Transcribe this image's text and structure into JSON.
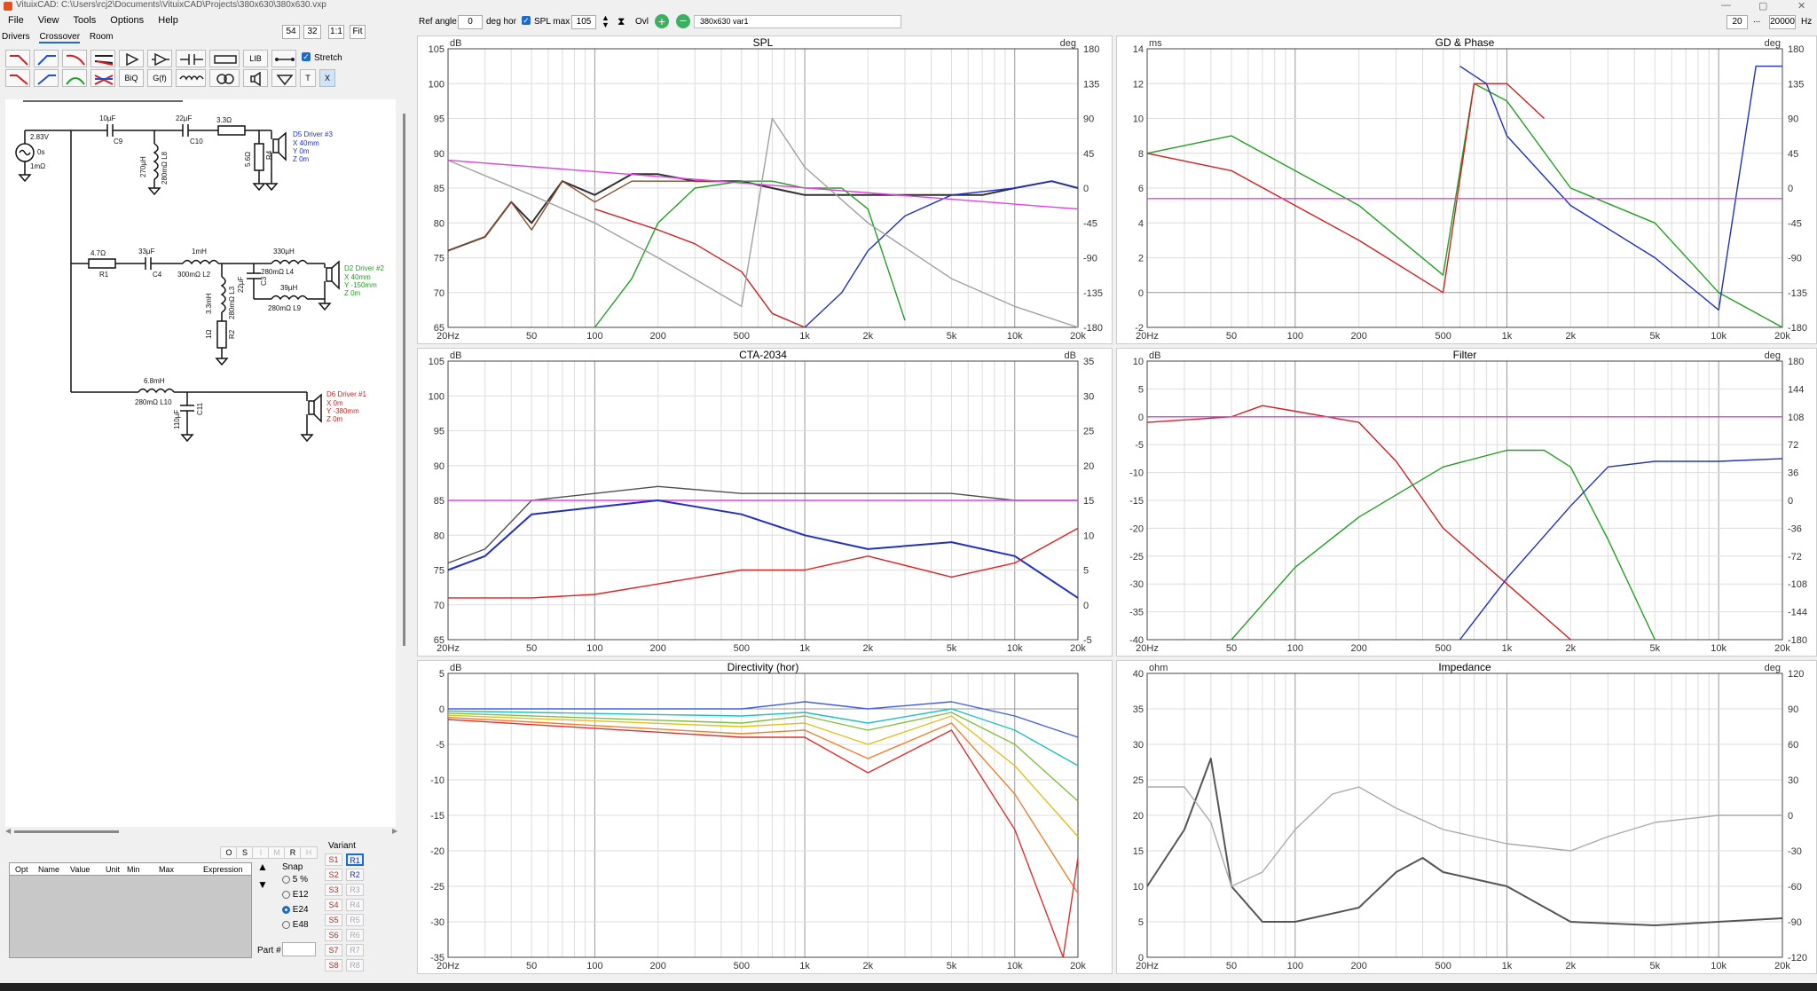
{
  "titlebar": {
    "title": "VituixCAD: C:\\Users\\rcj2\\Documents\\VituixCAD\\Projects\\380x630\\380x630.vxp"
  },
  "menu": [
    "File",
    "View",
    "Tools",
    "Options",
    "Help"
  ],
  "toolbar": {
    "zoom_a": "54",
    "zoom_b": "32",
    "ratio": "1:1",
    "fit": "Fit",
    "ref_angle_label": "Ref angle",
    "ref_angle_value": "0",
    "deg_hor": "deg hor",
    "spl_max_label": "SPL max",
    "spl_max_value": "105",
    "ovl_label": "Ovl",
    "project_name": "380x630 var1",
    "freq_min": "20",
    "freq_max": "20000",
    "freq_unit": "Hz",
    "ellipsis": "..."
  },
  "tabs": [
    "Drivers",
    "Crossover",
    "Room"
  ],
  "component_buttons": [
    "LIB",
    "BiQ",
    "G(f)",
    "T",
    "X"
  ],
  "stretch_label": "Stretch",
  "schematic": {
    "source": {
      "voltage": "2.83V",
      "delay": "0s",
      "r": "1mΩ"
    },
    "labels": {
      "c9": "10µF",
      "c9n": "C9",
      "c10": "22µF",
      "c10n": "C10",
      "r3": "3.3Ω",
      "l8": "270µH",
      "l8r": "280mΩ L8",
      "r4": "5.6Ω",
      "r4n": "R4",
      "r1": "4.7Ω",
      "r1n": "R1",
      "c4": "33µF",
      "c4n": "C4",
      "l2": "1mH",
      "l2r": "300mΩ L2",
      "l4": "330µH",
      "l4r": "280mΩ L4",
      "l3": "3.3mH",
      "l3r": "280mΩ L3",
      "c3": "22µF",
      "c3n": "C3",
      "l9": "39µH",
      "l9r": "280mΩ L9",
      "r2": "1Ω",
      "r2n": "R2",
      "l10": "6.8mH",
      "l10r": "280mΩ L10",
      "c11": "110µF",
      "c11n": "C11"
    },
    "drivers": [
      {
        "name": "D5 Driver #3",
        "x": "X 40mm",
        "y": "Y 0m",
        "z": "Z 0m",
        "color": "#2030c0"
      },
      {
        "name": "D2 Driver #2",
        "x": "X 40mm",
        "y": "Y -150mm",
        "z": "Z 0m",
        "color": "#20a020"
      },
      {
        "name": "D6 Driver #1",
        "x": "X 0m",
        "y": "Y -380mm",
        "z": "Z 0m",
        "color": "#d02020"
      }
    ]
  },
  "opt_table": {
    "buttons": [
      "O",
      "S",
      "I",
      "M",
      "R",
      "H"
    ],
    "columns": [
      "Opt",
      "Name",
      "Value",
      "Unit",
      "Min",
      "Max",
      "Expression"
    ]
  },
  "snap": {
    "label": "Snap",
    "options": [
      "5 %",
      "E12",
      "E24",
      "E48"
    ],
    "selected": "E24"
  },
  "variant": {
    "label": "Variant",
    "s": [
      "S1",
      "S2",
      "S3",
      "S4",
      "S5",
      "S6",
      "S7",
      "S8"
    ],
    "r": [
      "R1",
      "R2",
      "R3",
      "R4",
      "R5",
      "R6",
      "R7",
      "R8"
    ]
  },
  "part_label": "Part #",
  "chart_data": [
    {
      "type": "line",
      "title": "SPL",
      "ylabel": "dB",
      "y2label": "deg",
      "xscale": "log",
      "xlim": [
        20,
        20000
      ],
      "ylim": [
        65,
        105
      ],
      "y2lim": [
        -180,
        180
      ],
      "xticks": [
        "20Hz",
        "50",
        "100",
        "200",
        "500",
        "1k",
        "2k",
        "5k",
        "10k",
        "20k"
      ],
      "yticks": [
        "105",
        "100",
        "95",
        "90",
        "85",
        "80",
        "75",
        "70",
        "65"
      ],
      "y2ticks": [
        "180",
        "135",
        "90",
        "45",
        "0",
        "-45",
        "-90",
        "-135",
        "-180"
      ],
      "series": [
        {
          "color": "#303030",
          "x": [
            20,
            30,
            40,
            50,
            70,
            100,
            150,
            200,
            300,
            500,
            700,
            1000,
            1500,
            2000,
            3000,
            5000,
            7000,
            10000,
            15000,
            20000
          ],
          "y": [
            76,
            78,
            83,
            80,
            86,
            84,
            87,
            87,
            86,
            86,
            85,
            84,
            84,
            84,
            84,
            84,
            84,
            85,
            86,
            85
          ]
        },
        {
          "color": "#8a4a2a",
          "x": [
            20,
            30,
            40,
            50,
            70,
            100,
            150,
            200,
            300,
            400
          ],
          "y": [
            76,
            78,
            83,
            79,
            86,
            83,
            86,
            86,
            86,
            86
          ]
        },
        {
          "color": "#2030c0",
          "x": [
            1000,
            1500,
            2000,
            3000,
            5000,
            10000,
            15000,
            20000
          ],
          "y": [
            65,
            70,
            76,
            81,
            84,
            85,
            86,
            85
          ]
        },
        {
          "color": "#d02020",
          "x": [
            100,
            200,
            300,
            500,
            700,
            1000
          ],
          "y": [
            82,
            79,
            77,
            73,
            67,
            62
          ]
        },
        {
          "color": "#20a020",
          "x": [
            100,
            150,
            200,
            300,
            500,
            700,
            1000,
            1500,
            2000,
            3000
          ],
          "y": [
            62,
            72,
            80,
            85,
            86,
            86,
            85,
            85,
            82,
            66
          ]
        },
        {
          "color": "#a0a0a0",
          "x": [
            20,
            50,
            100,
            200,
            500,
            700,
            1000,
            2000,
            5000,
            10000,
            20000
          ],
          "y": [
            89,
            84,
            80,
            75,
            68,
            95,
            88,
            80,
            72,
            68,
            64
          ]
        },
        {
          "color": "#e040e0",
          "x": [
            20,
            20000
          ],
          "y": [
            89,
            82
          ]
        }
      ]
    },
    {
      "type": "line",
      "title": "GD & Phase",
      "ylabel": "ms",
      "y2label": "deg",
      "xscale": "log",
      "xlim": [
        20,
        20000
      ],
      "ylim": [
        -2,
        14
      ],
      "y2lim": [
        -180,
        180
      ],
      "xticks": [
        "20Hz",
        "50",
        "100",
        "200",
        "500",
        "1k",
        "2k",
        "5k",
        "10k",
        "20k"
      ],
      "yticks": [
        "14",
        "12",
        "10",
        "8",
        "6",
        "4",
        "2",
        "0",
        "-2"
      ],
      "y2ticks": [
        "180",
        "135",
        "90",
        "45",
        "0",
        "-45",
        "-90",
        "-135",
        "-180"
      ],
      "series": [
        {
          "color": "#20a020",
          "x": [
            20,
            50,
            100,
            200,
            500,
            700,
            1000,
            2000,
            5000,
            10000,
            20000
          ],
          "y": [
            8,
            9,
            7,
            5,
            1,
            12,
            11,
            6,
            4,
            0,
            -2
          ]
        },
        {
          "color": "#d02020",
          "x": [
            20,
            50,
            100,
            200,
            500,
            700,
            1000,
            1500
          ],
          "y": [
            8,
            7,
            5,
            3,
            0,
            12,
            12,
            10
          ]
        },
        {
          "color": "#2030c0",
          "x": [
            600,
            800,
            1000,
            2000,
            5000,
            10000,
            15000,
            20000
          ],
          "y": [
            13,
            12,
            9,
            5,
            2,
            -1,
            13,
            13
          ]
        },
        {
          "color": "#e040e0",
          "x": [
            20,
            20000
          ],
          "y": [
            5.4,
            5.4
          ]
        }
      ]
    },
    {
      "type": "line",
      "title": "CTA-2034",
      "ylabel": "dB",
      "y2label": "dB",
      "xscale": "log",
      "xlim": [
        20,
        20000
      ],
      "ylim": [
        65,
        105
      ],
      "y2lim": [
        -5,
        35
      ],
      "xticks": [
        "20Hz",
        "50",
        "100",
        "200",
        "500",
        "1k",
        "2k",
        "5k",
        "10k",
        "20k"
      ],
      "yticks": [
        "105",
        "100",
        "95",
        "90",
        "85",
        "80",
        "75",
        "70",
        "65"
      ],
      "y2ticks": [
        "35",
        "30",
        "25",
        "20",
        "15",
        "10",
        "5",
        "0",
        "-5"
      ],
      "series": [
        {
          "name": "",
          "color": "#505050",
          "x": [
            20,
            30,
            50,
            100,
            200,
            500,
            1000,
            2000,
            5000,
            10000,
            20000
          ],
          "y": [
            76,
            78,
            85,
            86,
            87,
            86,
            86,
            86,
            86,
            85,
            85
          ]
        },
        {
          "name": "",
          "color": "#e040e0",
          "x": [
            20,
            20000
          ],
          "y": [
            85,
            85
          ]
        },
        {
          "name": "",
          "color": "#2030c0",
          "x": [
            20,
            30,
            50,
            100,
            200,
            500,
            1000,
            2000,
            5000,
            10000,
            20000
          ],
          "y": [
            75,
            77,
            83,
            84,
            85,
            83,
            80,
            78,
            79,
            77,
            71
          ]
        },
        {
          "name": "",
          "color": "#e02020",
          "x": [
            20,
            50,
            100,
            200,
            500,
            1000,
            2000,
            5000,
            10000,
            20000
          ],
          "y": [
            71,
            71,
            71.5,
            73,
            75,
            75,
            77,
            74,
            76,
            81
          ]
        }
      ]
    },
    {
      "type": "line",
      "title": "Filter",
      "ylabel": "dB",
      "y2label": "deg",
      "xscale": "log",
      "xlim": [
        20,
        20000
      ],
      "ylim": [
        -40,
        10
      ],
      "y2lim": [
        -180,
        180
      ],
      "xticks": [
        "20Hz",
        "50",
        "100",
        "200",
        "500",
        "1k",
        "2k",
        "5k",
        "10k",
        "20k"
      ],
      "yticks": [
        "10",
        "5",
        "0",
        "-5",
        "-10",
        "-15",
        "-20",
        "-25",
        "-30",
        "-35",
        "-40"
      ],
      "y2ticks": [
        "180",
        "144",
        "108",
        "72",
        "36",
        "0",
        "-36",
        "-72",
        "-108",
        "-144",
        "-180"
      ],
      "series": [
        {
          "color": "#d02020",
          "x": [
            20,
            50,
            70,
            100,
            200,
            300,
            500,
            1000,
            2000
          ],
          "y": [
            -1,
            0,
            2,
            1,
            -1,
            -8,
            -20,
            -30,
            -40
          ]
        },
        {
          "color": "#20a020",
          "x": [
            50,
            100,
            200,
            500,
            1000,
            1500,
            2000,
            3000,
            5000
          ],
          "y": [
            -40,
            -27,
            -18,
            -9,
            -6,
            -6,
            -9,
            -22,
            -40
          ]
        },
        {
          "color": "#2030c0",
          "x": [
            600,
            1000,
            2000,
            3000,
            5000,
            10000,
            20000
          ],
          "y": [
            -40,
            -29,
            -16,
            -9,
            -8,
            -8,
            -7.5
          ]
        },
        {
          "color": "#e040e0",
          "x": [
            20,
            20000
          ],
          "y": [
            0,
            0
          ]
        }
      ]
    },
    {
      "type": "line",
      "title": "Directivity (hor)",
      "ylabel": "dB",
      "xscale": "log",
      "xlim": [
        20,
        20000
      ],
      "ylim": [
        -35,
        5
      ],
      "xticks": [
        "20Hz",
        "50",
        "100",
        "200",
        "500",
        "1k",
        "2k",
        "5k",
        "10k",
        "20k"
      ],
      "yticks": [
        "5",
        "0",
        "-5",
        "-10",
        "-15",
        "-20",
        "-25",
        "-30",
        "-35"
      ],
      "series": [
        {
          "color": "#4060e0",
          "x": [
            20,
            500,
            1000,
            2000,
            5000,
            10000,
            20000
          ],
          "y": [
            0,
            0,
            1,
            0,
            1,
            -1,
            -4
          ]
        },
        {
          "color": "#20c0c0",
          "x": [
            20,
            500,
            1000,
            2000,
            5000,
            10000,
            20000
          ],
          "y": [
            -0.3,
            -1,
            -0.5,
            -2,
            0,
            -3,
            -8
          ]
        },
        {
          "color": "#80c040",
          "x": [
            20,
            500,
            1000,
            2000,
            5000,
            10000,
            20000
          ],
          "y": [
            -0.6,
            -2,
            -1,
            -3,
            -0.5,
            -5,
            -13
          ]
        },
        {
          "color": "#e0c020",
          "x": [
            20,
            500,
            1000,
            2000,
            5000,
            10000,
            20000
          ],
          "y": [
            -0.9,
            -2.5,
            -2,
            -5,
            -1,
            -8,
            -18
          ]
        },
        {
          "color": "#f08030",
          "x": [
            20,
            500,
            1000,
            2000,
            5000,
            10000,
            20000
          ],
          "y": [
            -1.2,
            -3.5,
            -3,
            -7,
            -2,
            -12,
            -26
          ]
        },
        {
          "color": "#e03030",
          "x": [
            20,
            500,
            1000,
            2000,
            5000,
            10000,
            17000,
            20000
          ],
          "y": [
            -1.5,
            -4,
            -4,
            -9,
            -3,
            -17,
            -35,
            -21
          ]
        }
      ]
    },
    {
      "type": "line",
      "title": "Impedance",
      "ylabel": "ohm",
      "y2label": "deg",
      "xscale": "log",
      "xlim": [
        20,
        20000
      ],
      "ylim": [
        0,
        40
      ],
      "y2lim": [
        -120,
        120
      ],
      "xticks": [
        "20Hz",
        "50",
        "100",
        "200",
        "500",
        "1k",
        "2k",
        "5k",
        "10k",
        "20k"
      ],
      "yticks": [
        "40",
        "35",
        "30",
        "25",
        "20",
        "15",
        "10",
        "5",
        "0"
      ],
      "y2ticks": [
        "120",
        "90",
        "60",
        "30",
        "0",
        "-30",
        "-60",
        "-90",
        "-120"
      ],
      "series": [
        {
          "color": "#555555",
          "x": [
            20,
            30,
            40,
            50,
            70,
            100,
            200,
            300,
            400,
            500,
            1000,
            2000,
            5000,
            20000
          ],
          "y": [
            10,
            18,
            28,
            10,
            5,
            5,
            7,
            12,
            14,
            12,
            10,
            5,
            4.5,
            5.5
          ]
        },
        {
          "color": "#aaaaaa",
          "x": [
            20,
            30,
            40,
            50,
            70,
            100,
            150,
            200,
            300,
            500,
            1000,
            2000,
            3000,
            5000,
            10000,
            20000
          ],
          "y": [
            24,
            24,
            19,
            10,
            12,
            18,
            23,
            24,
            21,
            18,
            16,
            15,
            17,
            19,
            20,
            20
          ]
        }
      ]
    }
  ]
}
